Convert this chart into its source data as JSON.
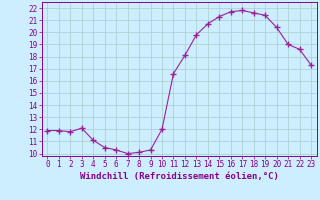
{
  "x": [
    0,
    1,
    2,
    3,
    4,
    5,
    6,
    7,
    8,
    9,
    10,
    11,
    12,
    13,
    14,
    15,
    16,
    17,
    18,
    19,
    20,
    21,
    22,
    23
  ],
  "y": [
    11.9,
    11.9,
    11.8,
    12.1,
    11.1,
    10.5,
    10.3,
    10.0,
    10.1,
    10.3,
    12.0,
    16.6,
    18.1,
    19.8,
    20.7,
    21.3,
    21.7,
    21.8,
    21.6,
    21.4,
    20.4,
    19.0,
    18.6,
    17.3
  ],
  "line_color": "#992299",
  "marker": "+",
  "marker_size": 4,
  "marker_lw": 1.0,
  "bg_color": "#cceeff",
  "grid_color": "#aacccc",
  "xlabel": "Windchill (Refroidissement éolien,°C)",
  "xlim": [
    -0.5,
    23.5
  ],
  "ylim": [
    9.8,
    22.5
  ],
  "yticks": [
    10,
    11,
    12,
    13,
    14,
    15,
    16,
    17,
    18,
    19,
    20,
    21,
    22
  ],
  "xticks": [
    0,
    1,
    2,
    3,
    4,
    5,
    6,
    7,
    8,
    9,
    10,
    11,
    12,
    13,
    14,
    15,
    16,
    17,
    18,
    19,
    20,
    21,
    22,
    23
  ],
  "tick_fontsize": 5.5,
  "xlabel_fontsize": 6.5,
  "label_color": "#880088"
}
